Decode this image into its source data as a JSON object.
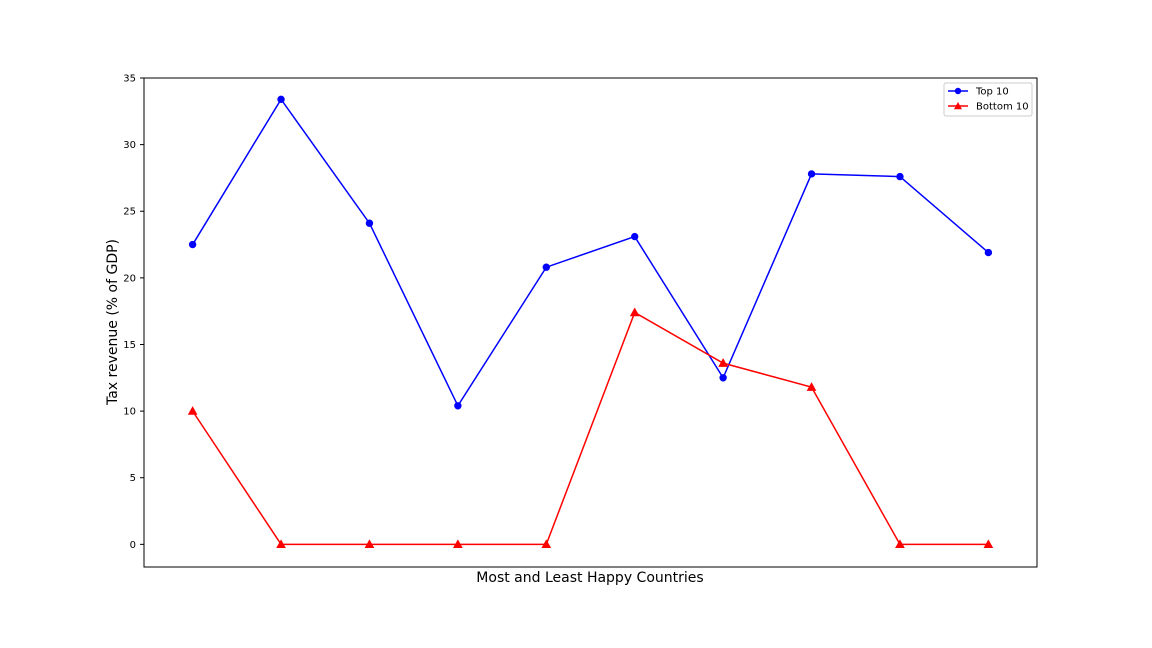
{
  "chart_data": {
    "type": "line",
    "title": "",
    "xlabel": "Most and Least Happy Countries",
    "ylabel": "Tax revenue (% of GDP)",
    "x": [
      1,
      2,
      3,
      4,
      5,
      6,
      7,
      8,
      9,
      10
    ],
    "xticks_visible": false,
    "ylim": [
      -1.7,
      35
    ],
    "yticks": [
      0,
      5,
      10,
      15,
      20,
      25,
      30,
      35
    ],
    "grid": false,
    "legend_position": "top-right",
    "series": [
      {
        "name": "Top 10",
        "color": "#0000ff",
        "marker": "circle",
        "values": [
          22.5,
          33.4,
          24.1,
          10.4,
          20.8,
          23.1,
          12.5,
          27.8,
          27.6,
          21.9
        ]
      },
      {
        "name": "Bottom 10",
        "color": "#ff0000",
        "marker": "triangle",
        "values": [
          10.0,
          0.0,
          0.0,
          0.0,
          0.0,
          17.4,
          13.6,
          11.8,
          0.0,
          0.0
        ]
      }
    ]
  }
}
